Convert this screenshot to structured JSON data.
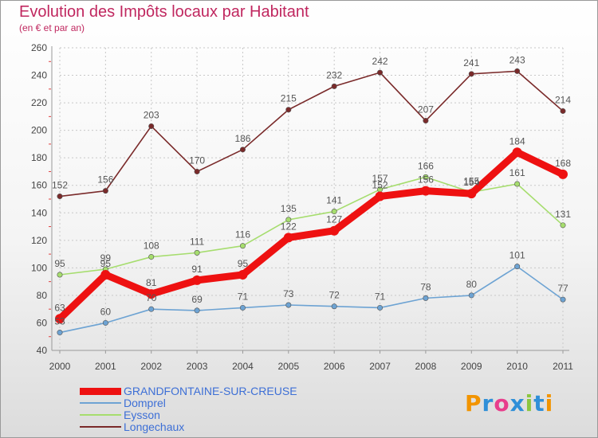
{
  "header": {
    "title": "Evolution des Impôts locaux par Habitant",
    "subtitle": "(en € et par an)"
  },
  "logo": {
    "text": "Proxiti",
    "colors": [
      "#f29400",
      "#2f8fd8",
      "#e83e8c",
      "#2f8fd8",
      "#8dc63f",
      "#2f8fd8",
      "#f29400"
    ]
  },
  "chart_data": {
    "type": "line",
    "title": "Evolution des Impôts locaux par Habitant",
    "subtitle": "(en € et par an)",
    "xlabel": "",
    "ylabel": "",
    "categories": [
      "2000",
      "2001",
      "2002",
      "2003",
      "2004",
      "2005",
      "2006",
      "2007",
      "2008",
      "2009",
      "2010",
      "2011"
    ],
    "ylim": [
      40,
      260
    ],
    "yticks": [
      40,
      60,
      80,
      100,
      120,
      140,
      160,
      180,
      200,
      220,
      240,
      260
    ],
    "grid": true,
    "legend": "bottom-left",
    "series": [
      {
        "name": "Longechaux",
        "color": "#7a2a2a",
        "values": [
          152,
          156,
          203,
          170,
          186,
          215,
          232,
          242,
          207,
          241,
          243,
          214
        ]
      },
      {
        "name": "Eysson",
        "color": "#a6dd6e",
        "values": [
          95,
          99,
          108,
          111,
          116,
          135,
          141,
          157,
          166,
          155,
          161,
          131
        ]
      },
      {
        "name": "Domprel",
        "color": "#6da3d3",
        "values": [
          53,
          60,
          70,
          69,
          71,
          73,
          72,
          71,
          78,
          80,
          101,
          77
        ]
      },
      {
        "name": "GRANDFONTAINE-SUR-CREUSE",
        "color": "#ee1111",
        "values": [
          63,
          95,
          81,
          91,
          95,
          122,
          127,
          152,
          156,
          154,
          184,
          168
        ]
      }
    ],
    "legend_order": [
      "GRANDFONTAINE-SUR-CREUSE",
      "Domprel",
      "Eysson",
      "Longechaux"
    ]
  }
}
